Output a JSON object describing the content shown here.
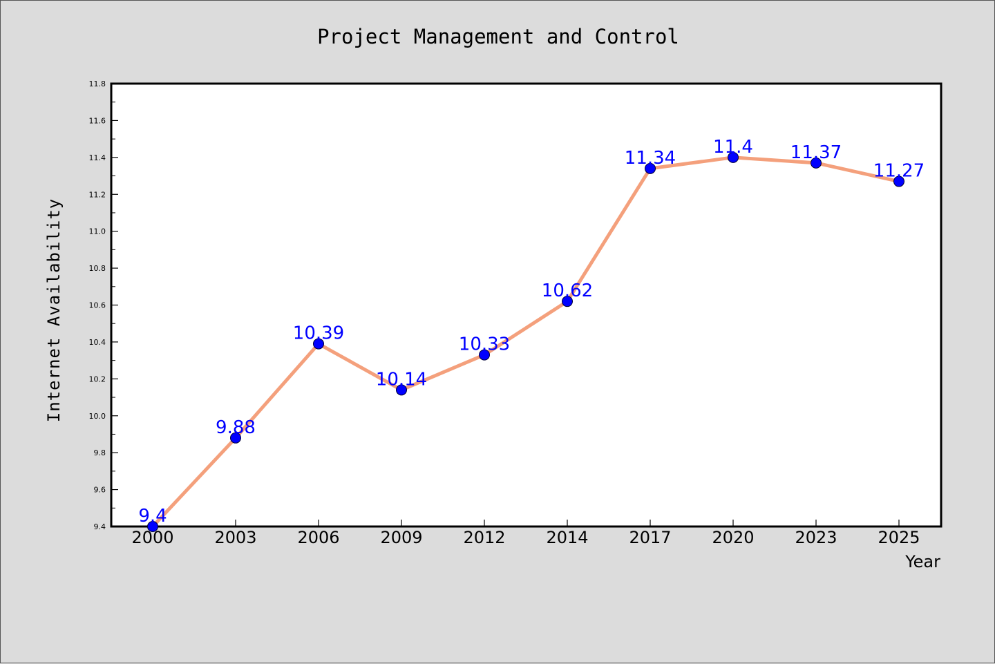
{
  "chart_data": {
    "type": "line",
    "title": "Project Management and Control",
    "xlabel": "Year",
    "ylabel": "Internet Availability",
    "categories": [
      "2000",
      "2003",
      "2006",
      "2009",
      "2012",
      "2014",
      "2017",
      "2020",
      "2023",
      "2025"
    ],
    "series": [
      {
        "values": [
          9.4,
          9.88,
          10.39,
          10.14,
          10.33,
          10.62,
          11.34,
          11.4,
          11.37,
          11.27
        ],
        "data_labels": [
          "9.4",
          "9.88",
          "10.39",
          "10.14",
          "10.33",
          "10.62",
          "11.34",
          "11.4",
          "11.37",
          "11.27"
        ],
        "line_color": "#f4a07c",
        "marker_color": "#0000ff"
      }
    ],
    "ylim": [
      9.4,
      11.8
    ],
    "yticks": [
      "9.4",
      "9.6",
      "9.8",
      "10.0",
      "10.2",
      "10.4",
      "10.6",
      "10.8",
      "11.0",
      "11.2",
      "11.4",
      "11.6",
      "11.8"
    ],
    "grid": false,
    "legend": "none",
    "colors": {
      "background": "#dcdcdc",
      "plot_background": "#ffffff",
      "label_color": "#0000ff"
    }
  }
}
